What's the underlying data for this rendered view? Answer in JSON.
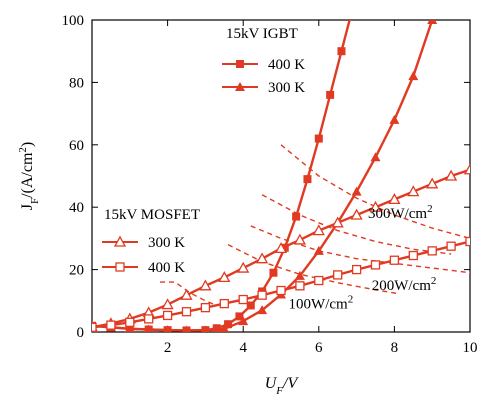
{
  "chart_data": {
    "type": "line",
    "xlabel": "U_F/V",
    "ylabel": "J_F/(A/cm^2)",
    "xlim": [
      0,
      10
    ],
    "ylim": [
      0,
      100
    ],
    "xticks": [
      2,
      4,
      6,
      8,
      10
    ],
    "yticks": [
      0,
      20,
      40,
      60,
      80,
      100
    ],
    "grid": false,
    "legend_groups": [
      {
        "title": "15kV IGBT",
        "placement": "top-center",
        "entries": [
          {
            "label": "400 K",
            "series": "igbt_400"
          },
          {
            "label": "300 K",
            "series": "igbt_300"
          }
        ]
      },
      {
        "title": "15kV MOSFET",
        "placement": "middle-left",
        "entries": [
          {
            "label": "300 K",
            "series": "mosfet_300"
          },
          {
            "label": "400 K",
            "series": "mosfet_400"
          }
        ]
      }
    ],
    "series": [
      {
        "id": "igbt_400",
        "color": "#e03a22",
        "marker": "filled-square",
        "style": "solid",
        "x": [
          0.0,
          0.5,
          1.0,
          1.5,
          2.0,
          2.5,
          3.0,
          3.3,
          3.6,
          3.9,
          4.2,
          4.5,
          4.8,
          5.1,
          5.4,
          5.7,
          6.0,
          6.3,
          6.6,
          6.9
        ],
        "y": [
          2,
          1.5,
          1,
          0.8,
          0.6,
          0.5,
          0.6,
          1.2,
          2.5,
          5,
          8.5,
          13,
          19,
          27,
          37,
          49,
          62,
          76,
          90,
          104
        ]
      },
      {
        "id": "igbt_300",
        "color": "#e03a22",
        "marker": "filled-triangle",
        "style": "solid",
        "x": [
          0.0,
          0.5,
          1.0,
          1.5,
          2.0,
          2.5,
          3.0,
          3.5,
          4.0,
          4.5,
          5.0,
          5.5,
          6.0,
          6.5,
          7.0,
          7.5,
          8.0,
          8.5,
          9.0
        ],
        "y": [
          2,
          1.5,
          1,
          0.8,
          0.6,
          0.5,
          0.5,
          1,
          3.5,
          7,
          12,
          18,
          26,
          35,
          45,
          56,
          68,
          82,
          100
        ]
      },
      {
        "id": "mosfet_300",
        "color": "#e03a22",
        "marker": "open-triangle",
        "style": "solid",
        "x": [
          0.0,
          0.5,
          1.0,
          1.5,
          2.0,
          2.5,
          3.0,
          3.5,
          4.0,
          4.5,
          5.0,
          5.5,
          6.0,
          6.5,
          7.0,
          7.5,
          8.0,
          8.5,
          9.0,
          9.5,
          10.0
        ],
        "y": [
          1.5,
          2.7,
          4.2,
          6.2,
          8.8,
          11.8,
          14.8,
          17.5,
          20.5,
          23.5,
          26.8,
          29.5,
          32.5,
          35,
          37.5,
          40,
          42.5,
          45,
          47.5,
          50,
          52
        ]
      },
      {
        "id": "mosfet_400",
        "color": "#e03a22",
        "marker": "open-square",
        "style": "solid",
        "x": [
          0.0,
          0.5,
          1.0,
          1.5,
          2.0,
          2.5,
          3.0,
          3.5,
          4.0,
          4.5,
          5.0,
          5.5,
          6.0,
          6.5,
          7.0,
          7.5,
          8.0,
          8.5,
          9.0,
          9.5,
          10.0
        ],
        "y": [
          1.5,
          2.2,
          3.1,
          4.2,
          5.3,
          6.5,
          7.8,
          9.1,
          10.4,
          11.8,
          13.3,
          14.8,
          16.5,
          18.3,
          20,
          21.5,
          23,
          24.5,
          26,
          27.5,
          29
        ]
      },
      {
        "id": "power_300",
        "color": "#e03a22",
        "marker": "none",
        "style": "dashed",
        "label": "300W/cm^2",
        "x": [
          5.0,
          6.0,
          7.0,
          8.0,
          9.0,
          10.0
        ],
        "y": [
          60,
          50,
          42.9,
          37.5,
          33.3,
          30
        ]
      },
      {
        "id": "power_300_b",
        "color": "#e03a22",
        "marker": "none",
        "style": "dashed",
        "x": [
          4.5,
          5.5,
          6.5,
          7.5,
          8.5,
          9.5
        ],
        "y": [
          44,
          37.5,
          32.5,
          29,
          26.5,
          25
        ]
      },
      {
        "id": "power_200",
        "color": "#e03a22",
        "marker": "none",
        "style": "dashed",
        "label": "200W/cm^2",
        "x": [
          4.2,
          5.0,
          6.0,
          7.0,
          8.0,
          9.0,
          10.0
        ],
        "y": [
          34,
          30,
          26,
          23.5,
          22,
          20.5,
          19
        ]
      },
      {
        "id": "power_100",
        "color": "#e03a22",
        "marker": "none",
        "style": "dashed",
        "label": "100W/cm^2",
        "x": [
          3.6,
          4.5,
          5.5,
          6.5,
          7.5,
          8.1
        ],
        "y": [
          28,
          22.5,
          18.5,
          15.8,
          13.5,
          12.3
        ]
      },
      {
        "id": "power_low",
        "color": "#e03a22",
        "marker": "none",
        "style": "dashed",
        "x": [
          1.8,
          2.2,
          2.6,
          3.0,
          3.2
        ],
        "y": [
          16,
          16,
          12.5,
          10,
          9
        ]
      }
    ],
    "annotations": [
      {
        "text": "300W/cm",
        "sup": "2",
        "x": 7.3,
        "y": 36.5
      },
      {
        "text": "200W/cm",
        "sup": "2",
        "x": 7.4,
        "y": 13.5
      },
      {
        "text": "100W/cm",
        "sup": "2",
        "x": 5.2,
        "y": 7.5
      }
    ]
  }
}
